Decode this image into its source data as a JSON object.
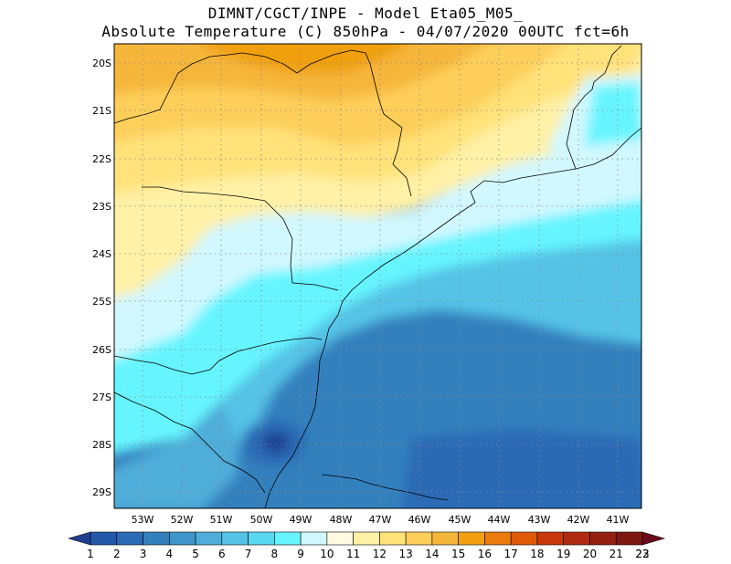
{
  "header": {
    "line1": "DIMNT/CGCT/INPE -  Model Eta05_M05_",
    "line2": "Absolute Temperature (C) 850hPa -  04/07/2020 00UTC fct=6h"
  },
  "map": {
    "lat_labels": [
      "20S",
      "21S",
      "22S",
      "23S",
      "24S",
      "25S",
      "26S",
      "27S",
      "28S",
      "29S"
    ],
    "lon_labels": [
      "53W",
      "52W",
      "51W",
      "50W",
      "49W",
      "48W",
      "47W",
      "46W",
      "45W",
      "44W",
      "43W",
      "42W",
      "41W"
    ],
    "lat_range": [
      -29.4,
      -19.8
    ],
    "lon_range": [
      -53.8,
      -40.4
    ],
    "region": "Southern and southeastern Brazil with adjacent South Atlantic"
  },
  "colorbar": {
    "labels": [
      "1",
      "2",
      "3",
      "4",
      "5",
      "6",
      "7",
      "8",
      "9",
      "10",
      "11",
      "12",
      "13",
      "14",
      "15",
      "16",
      "17",
      "18",
      "19",
      "20",
      "21",
      "22",
      "23"
    ],
    "colors": [
      "#1f3f8f",
      "#2357a8",
      "#2b6ab5",
      "#3380bd",
      "#3f95c9",
      "#4fadd9",
      "#55c3e6",
      "#5ad8f2",
      "#66f5ff",
      "#d2f8ff",
      "#fffbe3",
      "#fff1a6",
      "#ffe27a",
      "#fdcf5a",
      "#f6b63a",
      "#f0a010",
      "#eb7c0c",
      "#df5a08",
      "#c8380a",
      "#b02a10",
      "#962010",
      "#7d1810",
      "#6a0a1a"
    ]
  }
}
